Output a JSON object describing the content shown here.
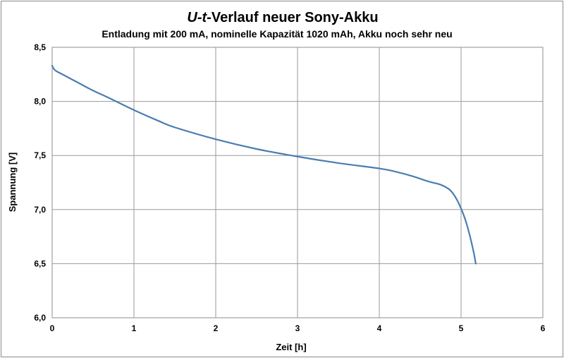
{
  "chart_data": {
    "type": "line",
    "title_symbol": "U-t",
    "title_rest": "-Verlauf neuer Sony-Akku",
    "subtitle": "Entladung mit 200 mA, nominelle Kapazität 1020 mAh, Akku noch sehr neu",
    "xlabel": "Zeit [h]",
    "ylabel": "Spannung [V]",
    "xlim": [
      0,
      6
    ],
    "ylim": [
      6.0,
      8.5
    ],
    "x_ticks": [
      0,
      1,
      2,
      3,
      4,
      5,
      6
    ],
    "x_tick_labels": [
      "0",
      "1",
      "2",
      "3",
      "4",
      "5",
      "6"
    ],
    "y_ticks": [
      6.0,
      6.5,
      7.0,
      7.5,
      8.0,
      8.5
    ],
    "y_tick_labels": [
      "6,0",
      "6,5",
      "7,0",
      "7,5",
      "8,0",
      "8,5"
    ],
    "grid": true,
    "legend": "none",
    "line_color": "#4a7eb0",
    "grid_color": "#9a9a9a",
    "series": [
      {
        "x": [
          0,
          0.02,
          0.05,
          0.1,
          0.2,
          0.3,
          0.5,
          0.7,
          1.0,
          1.3,
          1.5,
          2.0,
          2.5,
          3.0,
          3.5,
          4.0,
          4.2,
          4.4,
          4.6,
          4.75,
          4.85,
          4.9,
          4.95,
          5.0,
          5.05,
          5.1,
          5.15,
          5.18
        ],
        "y": [
          8.33,
          8.3,
          8.28,
          8.26,
          8.22,
          8.18,
          8.1,
          8.03,
          7.92,
          7.82,
          7.76,
          7.65,
          7.56,
          7.49,
          7.43,
          7.38,
          7.35,
          7.31,
          7.26,
          7.23,
          7.19,
          7.15,
          7.09,
          7.01,
          6.91,
          6.78,
          6.62,
          6.5
        ]
      }
    ]
  }
}
